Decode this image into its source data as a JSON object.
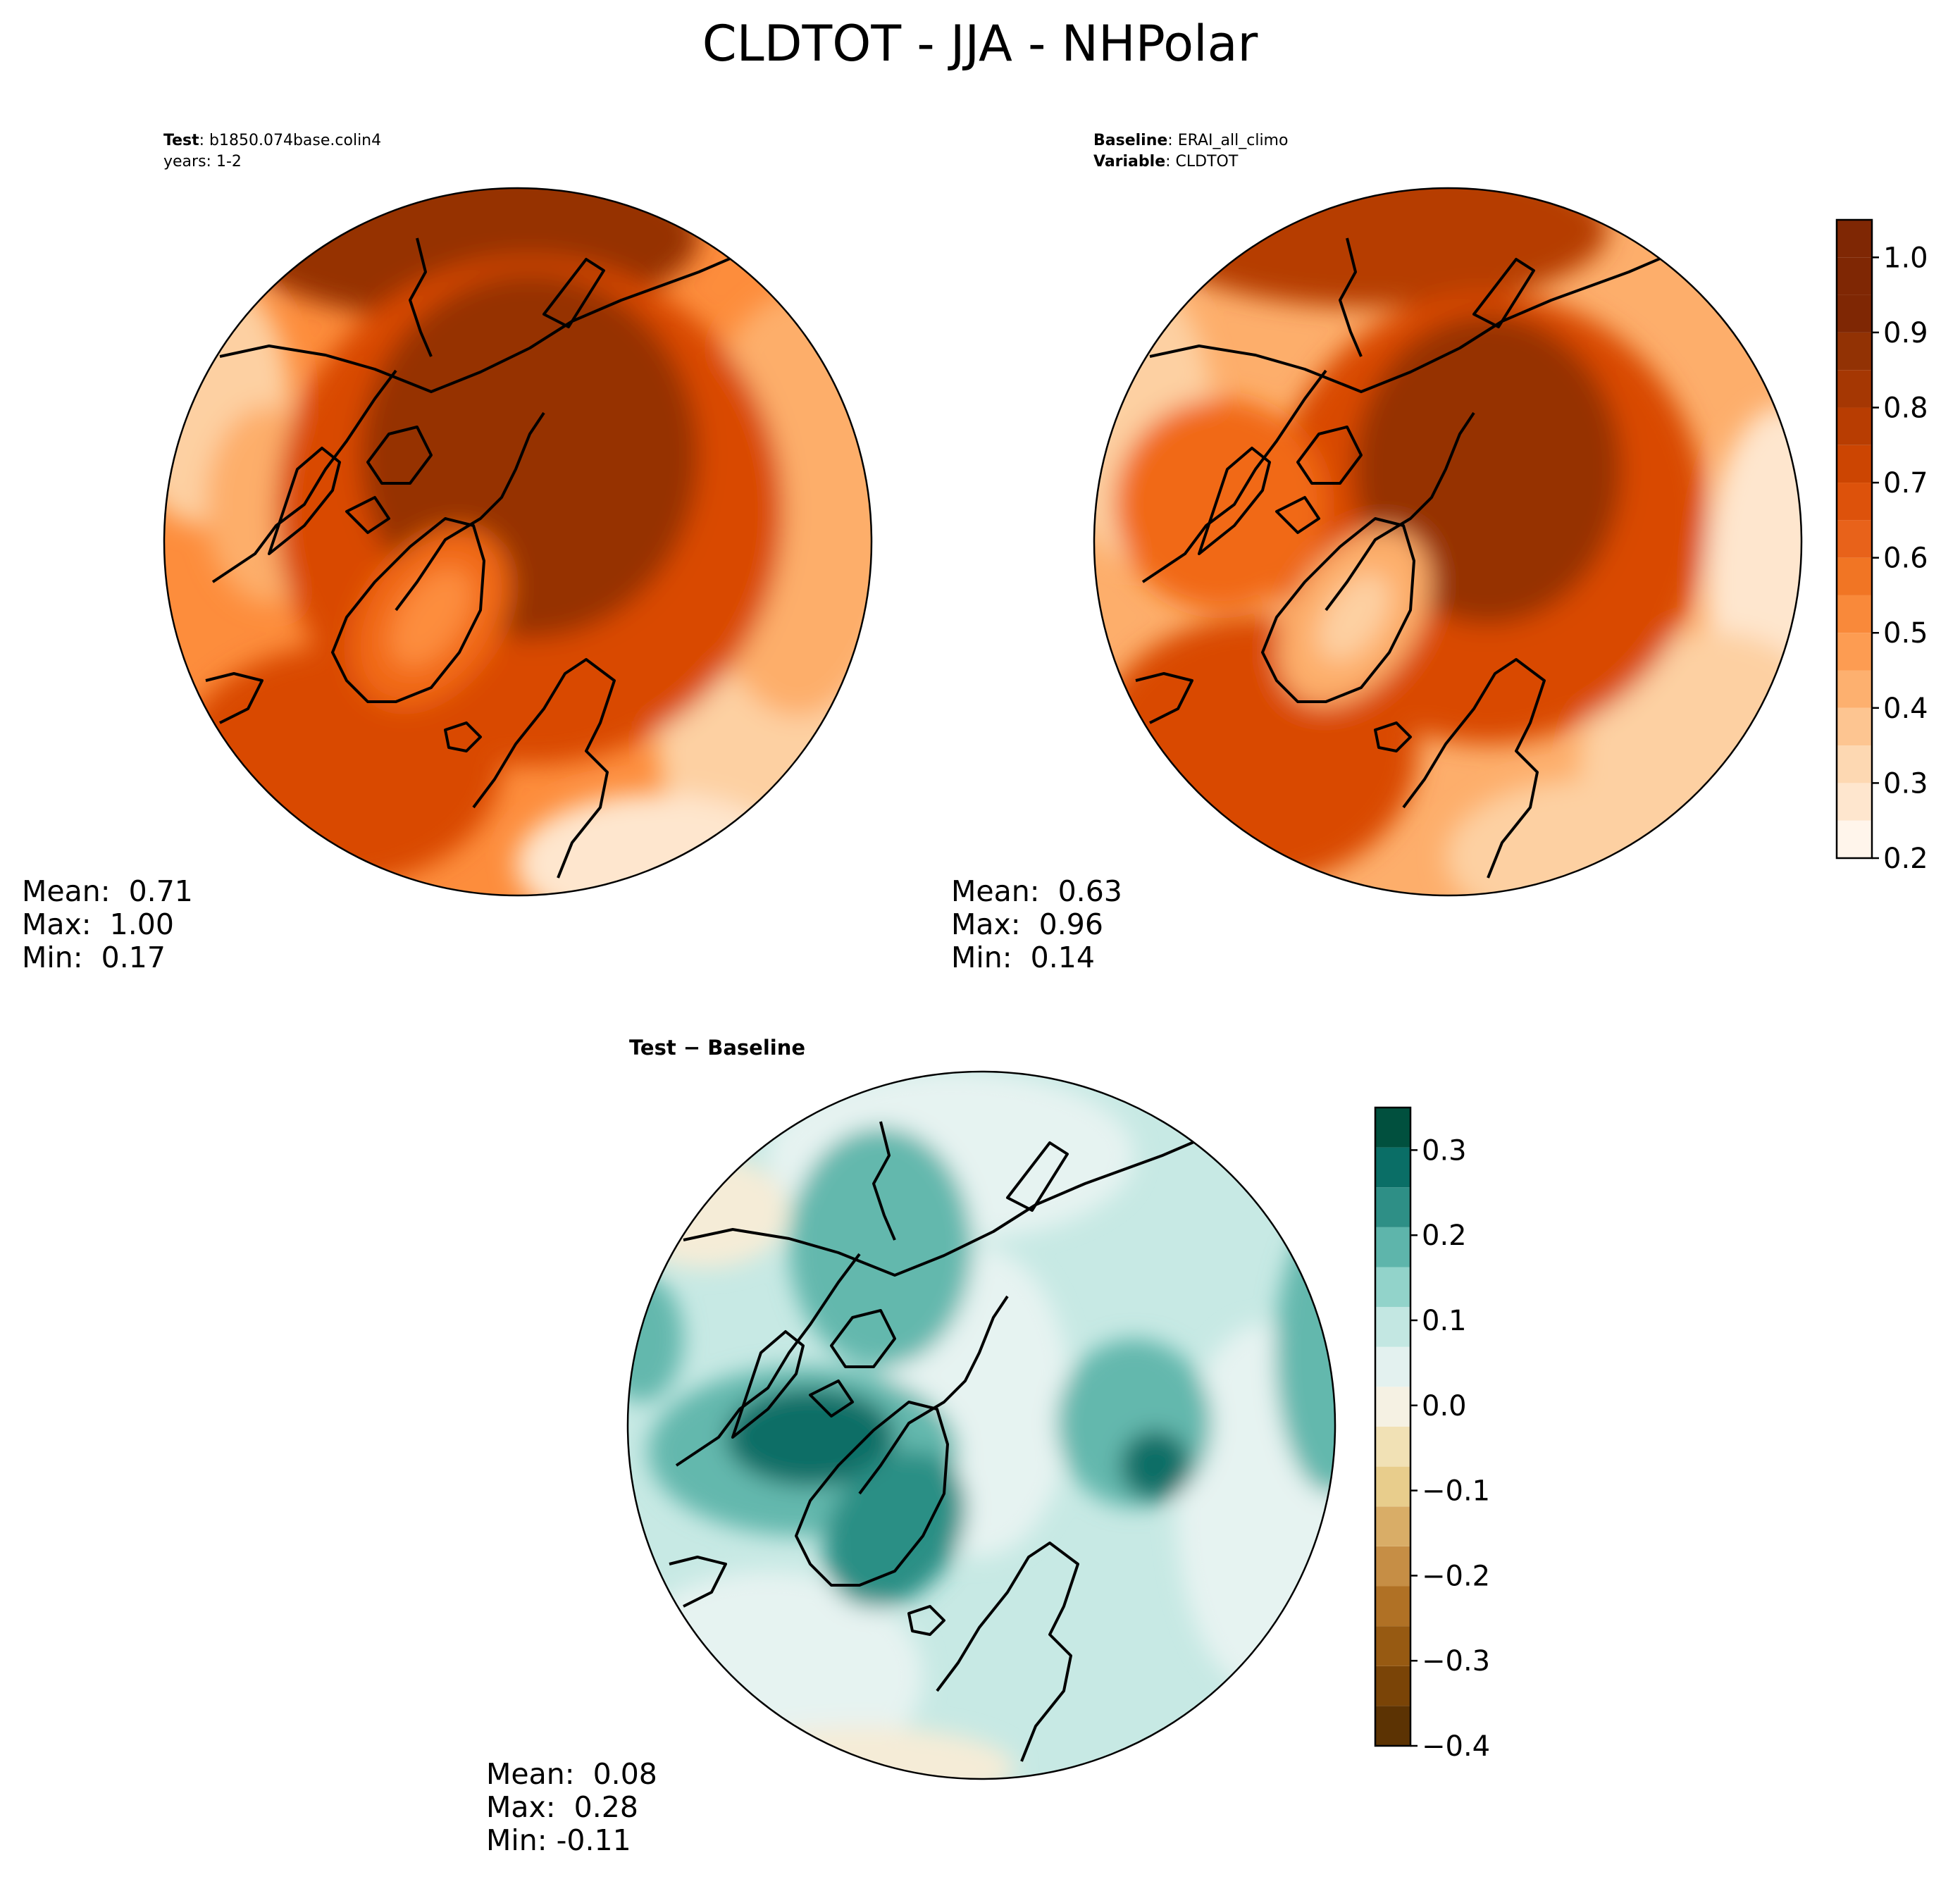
{
  "figure_title": "CLDTOT - JJA - NHPolar",
  "test_panel": {
    "label_bold": "Test",
    "label_rest": ": b1850.074base.colin4",
    "years": "years: 1-2",
    "mean": "Mean:  0.71",
    "max": "Max:  1.00",
    "min": "Min:  0.17"
  },
  "baseline_panel": {
    "label_bold": "Baseline",
    "label_rest": ": ERAI_all_climo",
    "variable_bold": "Variable",
    "variable_rest": ": CLDTOT",
    "mean": "Mean:  0.63",
    "max": "Max:  0.96",
    "min": "Min:  0.14"
  },
  "diff_panel": {
    "title": "Test − Baseline",
    "mean": "Mean:  0.08",
    "max": "Max:  0.28",
    "min": "Min: -0.11"
  },
  "colorbar_main": {
    "min": 0.2,
    "max": 1.05,
    "ticks": [
      "0.2",
      "0.3",
      "0.4",
      "0.5",
      "0.6",
      "0.7",
      "0.8",
      "0.9",
      "1.0"
    ],
    "tick_values": [
      0.2,
      0.3,
      0.4,
      0.5,
      0.6,
      0.7,
      0.8,
      0.9,
      1.0
    ],
    "levels": [
      0.2,
      0.25,
      0.3,
      0.35,
      0.4,
      0.45,
      0.5,
      0.55,
      0.6,
      0.65,
      0.7,
      0.75,
      0.8,
      0.85,
      0.9,
      0.95,
      1.0,
      1.05
    ],
    "colors": [
      "#fff5eb",
      "#fee6ce",
      "#fdd8b2",
      "#fdc591",
      "#fdb06f",
      "#fd9c52",
      "#f9893a",
      "#f17524",
      "#e8621a",
      "#dd520b",
      "#cc4502",
      "#b83d02",
      "#a53703",
      "#923204",
      "#7f2704",
      "#7f2704",
      "#7f2704"
    ]
  },
  "colorbar_diff": {
    "min": -0.4,
    "max": 0.35,
    "ticks": [
      "0.3",
      "0.2",
      "0.1",
      "0.0",
      "−0.1",
      "−0.2",
      "−0.3",
      "−0.4"
    ],
    "tick_values": [
      0.3,
      0.2,
      0.1,
      0.0,
      -0.1,
      -0.2,
      -0.3,
      -0.4
    ],
    "colors_bottom_to_top": [
      "#5c3303",
      "#7a4407",
      "#975a12",
      "#b07125",
      "#c68e45",
      "#d9ad67",
      "#e8cd8c",
      "#f1e1b5",
      "#f5f1e3",
      "#e3f1ef",
      "#c3e7e2",
      "#92d3ca",
      "#5eb5ab",
      "#2e8f86",
      "#0a6e66",
      "#01503e"
    ]
  },
  "map_colors": {
    "coast": "#000000",
    "main_scale": [
      "#fff5eb",
      "#fee6ce",
      "#fdd0a2",
      "#fdae6b",
      "#fd8d3c",
      "#f16913",
      "#d94801",
      "#b63d02",
      "#963304",
      "#8f3104"
    ],
    "diff_scale_neg": [
      "#f5ecd7",
      "#f1e1b5"
    ],
    "diff_scale_pos": [
      "#e6f3f1",
      "#c7e9e4",
      "#9fd8cf",
      "#63b8ad",
      "#2b8f85",
      "#0a6e66"
    ]
  }
}
